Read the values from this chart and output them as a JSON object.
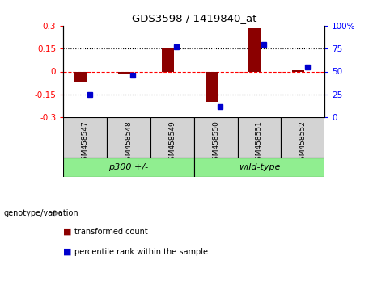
{
  "title": "GDS3598 / 1419840_at",
  "samples": [
    "GSM458547",
    "GSM458548",
    "GSM458549",
    "GSM458550",
    "GSM458551",
    "GSM458552"
  ],
  "transformed_count": [
    -0.07,
    -0.02,
    0.155,
    -0.2,
    0.285,
    0.008
  ],
  "percentile_rank": [
    25,
    46,
    77,
    12,
    80,
    55
  ],
  "bar_color": "#8B0000",
  "dot_color": "#0000CD",
  "ylim_left": [
    -0.3,
    0.3
  ],
  "ylim_right": [
    0,
    100
  ],
  "yticks_left": [
    -0.3,
    -0.15,
    0,
    0.15,
    0.3
  ],
  "yticks_right": [
    0,
    25,
    50,
    75,
    100
  ],
  "ytick_labels_left": [
    "-0.3",
    "-0.15",
    "0",
    "0.15",
    "0.3"
  ],
  "ytick_labels_right": [
    "0",
    "25",
    "50",
    "75",
    "100%"
  ],
  "hlines": [
    -0.15,
    0.0,
    0.15
  ],
  "hline_styles": [
    "dotted",
    "dashed",
    "dotted"
  ],
  "hline_colors": [
    "black",
    "red",
    "black"
  ],
  "sample_bg_color": "#D3D3D3",
  "group_fill_color": "#90EE90",
  "group_data": [
    {
      "label": "p300 +/-",
      "start": 0,
      "end": 3
    },
    {
      "label": "wild-type",
      "start": 3,
      "end": 6
    }
  ],
  "legend_red_label": "transformed count",
  "legend_blue_label": "percentile rank within the sample",
  "genotype_label": "genotype/variation"
}
